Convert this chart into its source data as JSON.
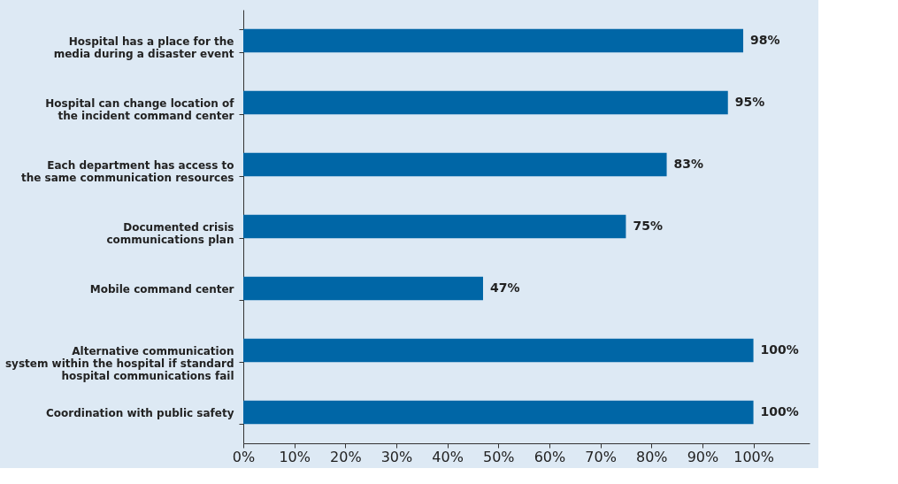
{
  "chart_data": {
    "type": "bar",
    "orientation": "horizontal",
    "categories": [
      "Hospital has a place for the\nmedia during a disaster event",
      "Hospital can change location of\nthe incident command center",
      "Each department has access to\nthe same communication resources",
      "Documented crisis\ncommunications plan",
      "Mobile command center",
      "Alternative communication\nsystem within the hospital if standard\nhospital communications fail",
      "Coordination with public safety"
    ],
    "values": [
      98,
      95,
      83,
      75,
      47,
      100,
      100
    ],
    "value_labels": [
      "98%",
      "95%",
      "83%",
      "75%",
      "47%",
      "100%",
      "100%"
    ],
    "color": "#0066a6",
    "xlim": [
      0,
      111
    ],
    "xticks": [
      {
        "value": 0,
        "label": "0%"
      },
      {
        "value": 10,
        "label": "10%"
      },
      {
        "value": 20,
        "label": "20%"
      },
      {
        "value": 30,
        "label": "30%"
      },
      {
        "value": 40,
        "label": "40%"
      },
      {
        "value": 50,
        "label": "50%"
      },
      {
        "value": 60,
        "label": "60%"
      },
      {
        "value": 70,
        "label": "70%"
      },
      {
        "value": 80,
        "label": "80%"
      },
      {
        "value": 90,
        "label": "90%"
      },
      {
        "value": 100,
        "label": "100%"
      }
    ],
    "grid": false
  }
}
